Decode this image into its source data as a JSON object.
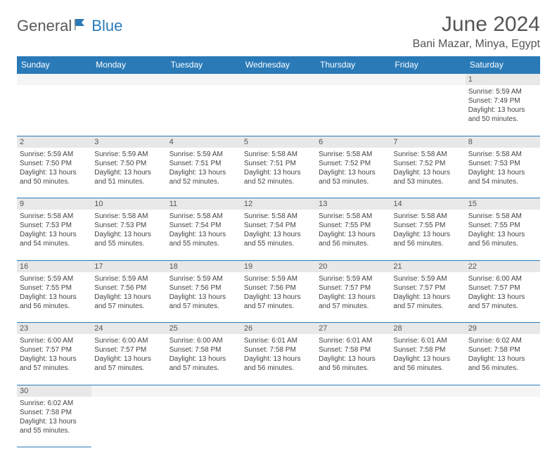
{
  "logo": {
    "part1": "General",
    "part2": "Blue"
  },
  "title": "June 2024",
  "location": "Bani Mazar, Minya, Egypt",
  "colors": {
    "header_bg": "#2a7ab8",
    "header_text": "#ffffff",
    "daynum_bg": "#e8e8e8",
    "border": "#2a7ab8",
    "text": "#444444",
    "logo_gray": "#5a5a5a",
    "logo_blue": "#2a7ab8"
  },
  "day_headers": [
    "Sunday",
    "Monday",
    "Tuesday",
    "Wednesday",
    "Thursday",
    "Friday",
    "Saturday"
  ],
  "weeks": [
    [
      null,
      null,
      null,
      null,
      null,
      null,
      {
        "n": "1",
        "sr": "5:59 AM",
        "ss": "7:49 PM",
        "dl": "13 hours and 50 minutes."
      }
    ],
    [
      {
        "n": "2",
        "sr": "5:59 AM",
        "ss": "7:50 PM",
        "dl": "13 hours and 50 minutes."
      },
      {
        "n": "3",
        "sr": "5:59 AM",
        "ss": "7:50 PM",
        "dl": "13 hours and 51 minutes."
      },
      {
        "n": "4",
        "sr": "5:59 AM",
        "ss": "7:51 PM",
        "dl": "13 hours and 52 minutes."
      },
      {
        "n": "5",
        "sr": "5:58 AM",
        "ss": "7:51 PM",
        "dl": "13 hours and 52 minutes."
      },
      {
        "n": "6",
        "sr": "5:58 AM",
        "ss": "7:52 PM",
        "dl": "13 hours and 53 minutes."
      },
      {
        "n": "7",
        "sr": "5:58 AM",
        "ss": "7:52 PM",
        "dl": "13 hours and 53 minutes."
      },
      {
        "n": "8",
        "sr": "5:58 AM",
        "ss": "7:53 PM",
        "dl": "13 hours and 54 minutes."
      }
    ],
    [
      {
        "n": "9",
        "sr": "5:58 AM",
        "ss": "7:53 PM",
        "dl": "13 hours and 54 minutes."
      },
      {
        "n": "10",
        "sr": "5:58 AM",
        "ss": "7:53 PM",
        "dl": "13 hours and 55 minutes."
      },
      {
        "n": "11",
        "sr": "5:58 AM",
        "ss": "7:54 PM",
        "dl": "13 hours and 55 minutes."
      },
      {
        "n": "12",
        "sr": "5:58 AM",
        "ss": "7:54 PM",
        "dl": "13 hours and 55 minutes."
      },
      {
        "n": "13",
        "sr": "5:58 AM",
        "ss": "7:55 PM",
        "dl": "13 hours and 56 minutes."
      },
      {
        "n": "14",
        "sr": "5:58 AM",
        "ss": "7:55 PM",
        "dl": "13 hours and 56 minutes."
      },
      {
        "n": "15",
        "sr": "5:58 AM",
        "ss": "7:55 PM",
        "dl": "13 hours and 56 minutes."
      }
    ],
    [
      {
        "n": "16",
        "sr": "5:59 AM",
        "ss": "7:55 PM",
        "dl": "13 hours and 56 minutes."
      },
      {
        "n": "17",
        "sr": "5:59 AM",
        "ss": "7:56 PM",
        "dl": "13 hours and 57 minutes."
      },
      {
        "n": "18",
        "sr": "5:59 AM",
        "ss": "7:56 PM",
        "dl": "13 hours and 57 minutes."
      },
      {
        "n": "19",
        "sr": "5:59 AM",
        "ss": "7:56 PM",
        "dl": "13 hours and 57 minutes."
      },
      {
        "n": "20",
        "sr": "5:59 AM",
        "ss": "7:57 PM",
        "dl": "13 hours and 57 minutes."
      },
      {
        "n": "21",
        "sr": "5:59 AM",
        "ss": "7:57 PM",
        "dl": "13 hours and 57 minutes."
      },
      {
        "n": "22",
        "sr": "6:00 AM",
        "ss": "7:57 PM",
        "dl": "13 hours and 57 minutes."
      }
    ],
    [
      {
        "n": "23",
        "sr": "6:00 AM",
        "ss": "7:57 PM",
        "dl": "13 hours and 57 minutes."
      },
      {
        "n": "24",
        "sr": "6:00 AM",
        "ss": "7:57 PM",
        "dl": "13 hours and 57 minutes."
      },
      {
        "n": "25",
        "sr": "6:00 AM",
        "ss": "7:58 PM",
        "dl": "13 hours and 57 minutes."
      },
      {
        "n": "26",
        "sr": "6:01 AM",
        "ss": "7:58 PM",
        "dl": "13 hours and 56 minutes."
      },
      {
        "n": "27",
        "sr": "6:01 AM",
        "ss": "7:58 PM",
        "dl": "13 hours and 56 minutes."
      },
      {
        "n": "28",
        "sr": "6:01 AM",
        "ss": "7:58 PM",
        "dl": "13 hours and 56 minutes."
      },
      {
        "n": "29",
        "sr": "6:02 AM",
        "ss": "7:58 PM",
        "dl": "13 hours and 56 minutes."
      }
    ],
    [
      {
        "n": "30",
        "sr": "6:02 AM",
        "ss": "7:58 PM",
        "dl": "13 hours and 55 minutes."
      },
      null,
      null,
      null,
      null,
      null,
      null
    ]
  ],
  "labels": {
    "sunrise": "Sunrise:",
    "sunset": "Sunset:",
    "daylight": "Daylight:"
  }
}
